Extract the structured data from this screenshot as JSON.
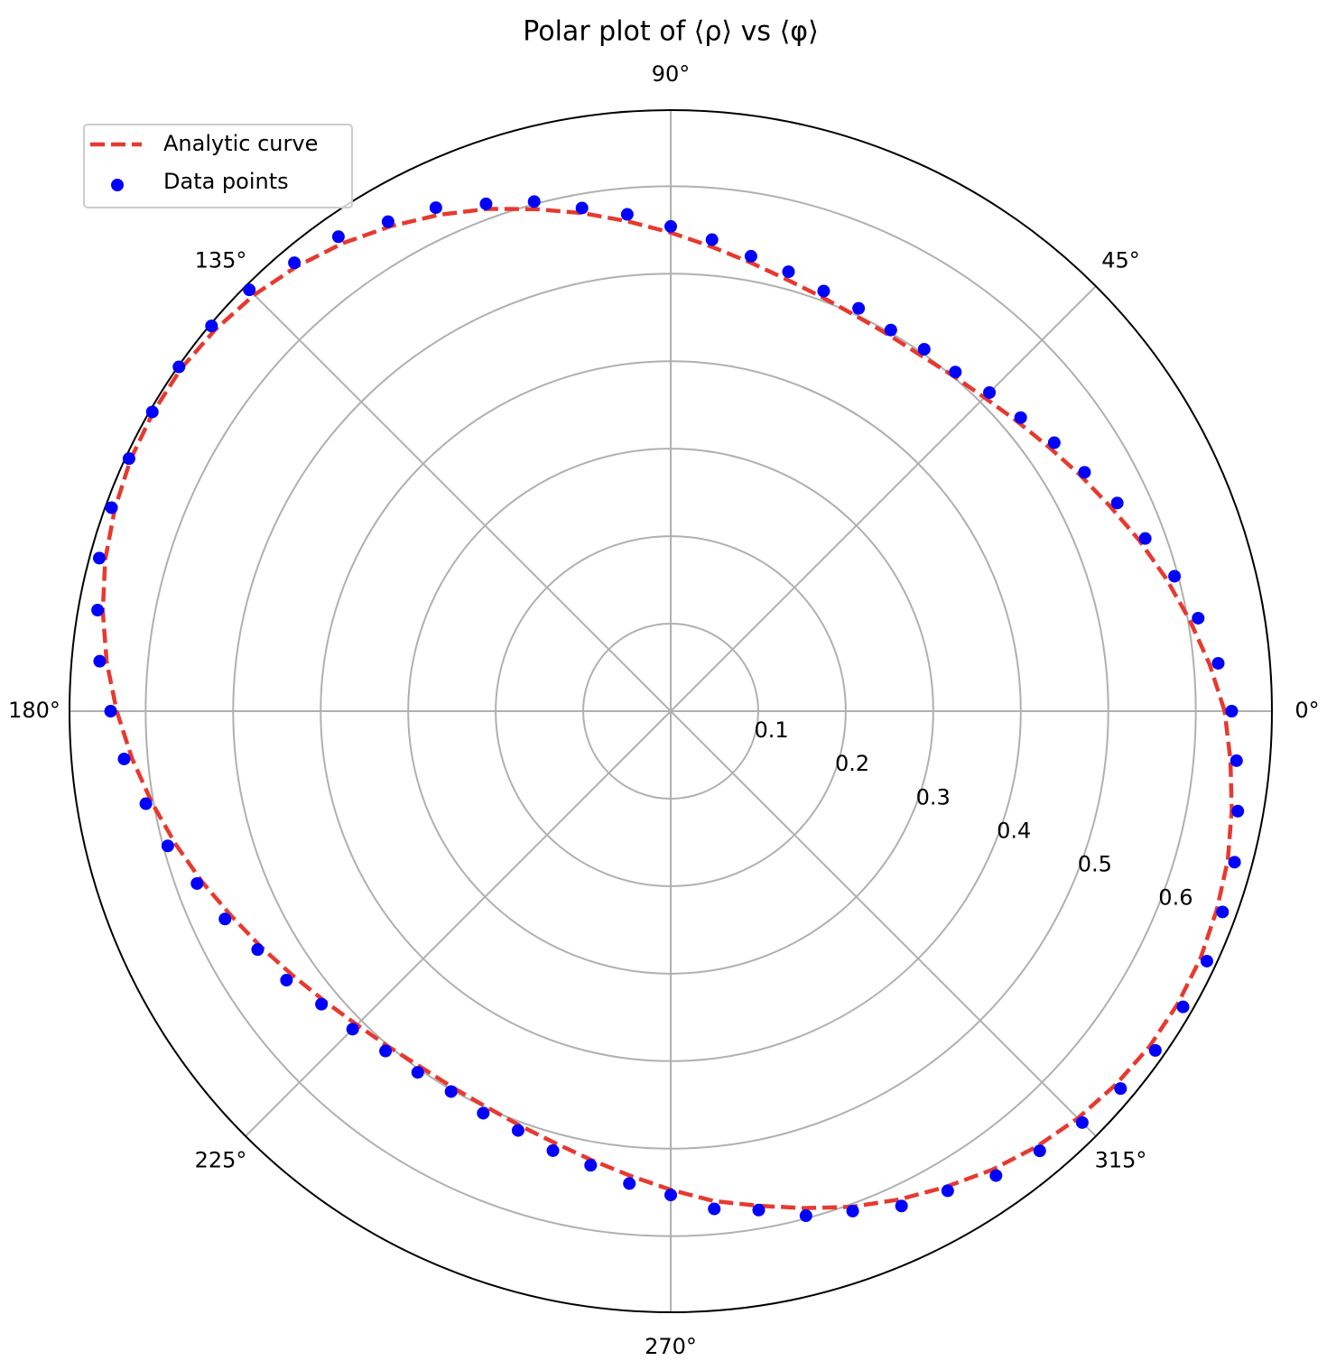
{
  "chart_data": {
    "type": "polar",
    "title": "Polar plot of ⟨ρ⟩ vs ⟨φ⟩",
    "rlim": [
      0,
      0.687
    ],
    "rticks": [
      0.1,
      0.2,
      0.3,
      0.4,
      0.5,
      0.6
    ],
    "xticks": [
      {
        "value": 0,
        "label": "0°"
      },
      {
        "value": 45,
        "label": "45°"
      },
      {
        "value": 90,
        "label": "90°"
      },
      {
        "value": 135,
        "label": "135°"
      },
      {
        "value": 180,
        "label": "180°"
      },
      {
        "value": 225,
        "label": "225°"
      },
      {
        "value": 270,
        "label": "270°"
      },
      {
        "value": 315,
        "label": "315°"
      }
    ],
    "grid": true,
    "legend": "upper left",
    "series": [
      {
        "name": "Analytic curve",
        "color": "#e8392f",
        "style": "dashed",
        "theta": [
          0,
          5,
          10,
          15,
          20,
          25,
          30,
          35,
          40,
          45,
          50,
          55,
          60,
          65,
          70,
          75,
          80,
          85,
          90,
          95,
          100,
          105,
          110,
          115,
          120,
          125,
          130,
          135,
          140,
          145,
          150,
          155,
          160,
          165,
          170,
          175,
          180,
          185,
          190,
          195,
          200,
          205,
          210,
          215,
          220,
          225,
          230,
          235,
          240,
          245,
          250,
          255,
          260,
          265,
          270,
          275,
          280,
          285,
          290,
          295,
          300,
          305,
          310,
          315,
          320,
          325,
          330,
          335,
          340,
          345,
          350,
          355,
          360
        ],
        "values": [
          0.633,
          0.618,
          0.602,
          0.586,
          0.57,
          0.554,
          0.54,
          0.527,
          0.516,
          0.507,
          0.501,
          0.497,
          0.497,
          0.499,
          0.504,
          0.511,
          0.521,
          0.533,
          0.547,
          0.562,
          0.578,
          0.594,
          0.611,
          0.626,
          0.64,
          0.653,
          0.664,
          0.673,
          0.679,
          0.683,
          0.683,
          0.681,
          0.676,
          0.669,
          0.659,
          0.647,
          0.633,
          0.618,
          0.602,
          0.586,
          0.57,
          0.554,
          0.54,
          0.527,
          0.516,
          0.507,
          0.501,
          0.497,
          0.497,
          0.499,
          0.504,
          0.511,
          0.521,
          0.533,
          0.547,
          0.562,
          0.574,
          0.588,
          0.603,
          0.616,
          0.628,
          0.64,
          0.65,
          0.658,
          0.664,
          0.668,
          0.669,
          0.668,
          0.664,
          0.659,
          0.651,
          0.642,
          0.633
        ]
      },
      {
        "name": "Data points",
        "color": "#0000ff",
        "style": "markers",
        "theta": [
          0,
          5,
          10,
          15,
          20,
          25,
          30,
          35,
          40,
          45,
          50,
          55,
          60,
          65,
          70,
          75,
          80,
          85,
          90,
          95,
          100,
          105,
          110,
          115,
          120,
          125,
          130,
          135,
          140,
          145,
          150,
          155,
          160,
          165,
          170,
          175,
          180,
          185,
          190,
          195,
          200,
          205,
          210,
          215,
          220,
          225,
          230,
          235,
          240,
          245,
          250,
          255,
          260,
          265,
          270,
          275,
          280,
          285,
          290,
          295,
          300,
          305,
          310,
          315,
          320,
          325,
          330,
          335,
          340,
          345,
          350,
          355
        ],
        "values": [
          0.641,
          0.628,
          0.612,
          0.596,
          0.577,
          0.563,
          0.546,
          0.535,
          0.522,
          0.515,
          0.506,
          0.505,
          0.503,
          0.508,
          0.511,
          0.52,
          0.528,
          0.541,
          0.554,
          0.57,
          0.584,
          0.603,
          0.617,
          0.635,
          0.646,
          0.662,
          0.669,
          0.681,
          0.685,
          0.686,
          0.684,
          0.683,
          0.68,
          0.676,
          0.665,
          0.655,
          0.64,
          0.627,
          0.609,
          0.595,
          0.576,
          0.562,
          0.545,
          0.536,
          0.521,
          0.514,
          0.507,
          0.504,
          0.502,
          0.507,
          0.51,
          0.52,
          0.527,
          0.542,
          0.553,
          0.571,
          0.579,
          0.597,
          0.608,
          0.624,
          0.633,
          0.648,
          0.656,
          0.665,
          0.671,
          0.676,
          0.676,
          0.676,
          0.671,
          0.667,
          0.658,
          0.649
        ]
      }
    ]
  }
}
